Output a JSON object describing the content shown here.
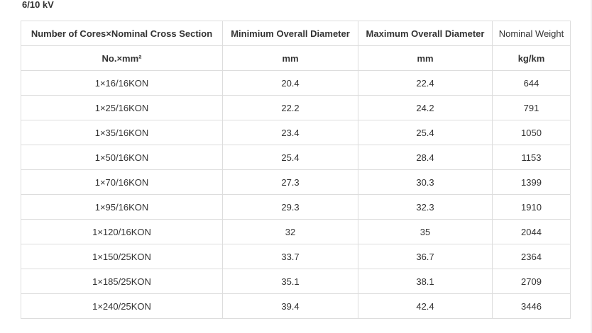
{
  "heading": "6/10 kV",
  "table": {
    "headers": [
      "Number of Cores×Nominal Cross Section",
      "Minimium Overall Diameter",
      "Maximum Overall Diameter",
      "Nominal Weight"
    ],
    "units": [
      "No.×mm²",
      "mm",
      "mm",
      "kg/km"
    ],
    "rows": [
      [
        "1×16/16KON",
        "20.4",
        "22.4",
        "644"
      ],
      [
        "1×25/16KON",
        "22.2",
        "24.2",
        "791"
      ],
      [
        "1×35/16KON",
        "23.4",
        "25.4",
        "1050"
      ],
      [
        "1×50/16KON",
        "25.4",
        "28.4",
        "1153"
      ],
      [
        "1×70/16KON",
        "27.3",
        "30.3",
        "1399"
      ],
      [
        "1×95/16KON",
        "29.3",
        "32.3",
        "1910"
      ],
      [
        "1×120/16KON",
        "32",
        "35",
        "2044"
      ],
      [
        "1×150/25KON",
        "33.7",
        "36.7",
        "2364"
      ],
      [
        "1×185/25KON",
        "35.1",
        "38.1",
        "2709"
      ],
      [
        "1×240/25KON",
        "39.4",
        "42.4",
        "3446"
      ]
    ]
  }
}
